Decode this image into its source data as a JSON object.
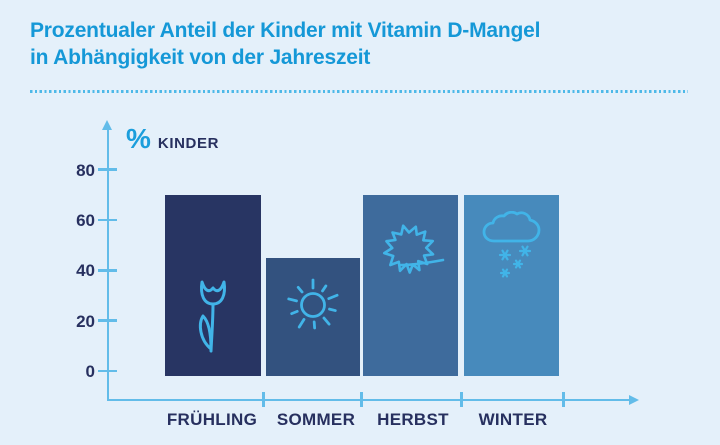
{
  "title": {
    "line1": "Prozentualer Anteil der Kinder mit Vitamin D-Mangel",
    "line2": "in Abhängigkeit von der Jahreszeit"
  },
  "colors": {
    "background": "#e4f0fa",
    "title_blue": "#1598d7",
    "navy_text": "#27305f",
    "axis_blue": "#62bce9",
    "icon_blue": "#41b4e8"
  },
  "chart_data": {
    "type": "bar",
    "title": "Prozentualer Anteil der Kinder mit Vitamin D-Mangel in Abhängigkeit von der Jahreszeit",
    "ylabel_symbol": "%",
    "ylabel_text": "KINDER",
    "xlabel": "",
    "categories": [
      "FRÜHLING",
      "SOMMER",
      "HERBST",
      "WINTER"
    ],
    "values": [
      70,
      45,
      70,
      70
    ],
    "yticks": [
      80,
      60,
      40,
      20,
      0
    ],
    "ylim": [
      0,
      90
    ],
    "grid": false,
    "legend": false,
    "bar_colors": [
      "#283563",
      "#33527f",
      "#3e6b9c",
      "#478abc"
    ],
    "icons": [
      "tulip-icon",
      "sun-icon",
      "maple-leaf-icon",
      "snow-cloud-icon"
    ]
  }
}
